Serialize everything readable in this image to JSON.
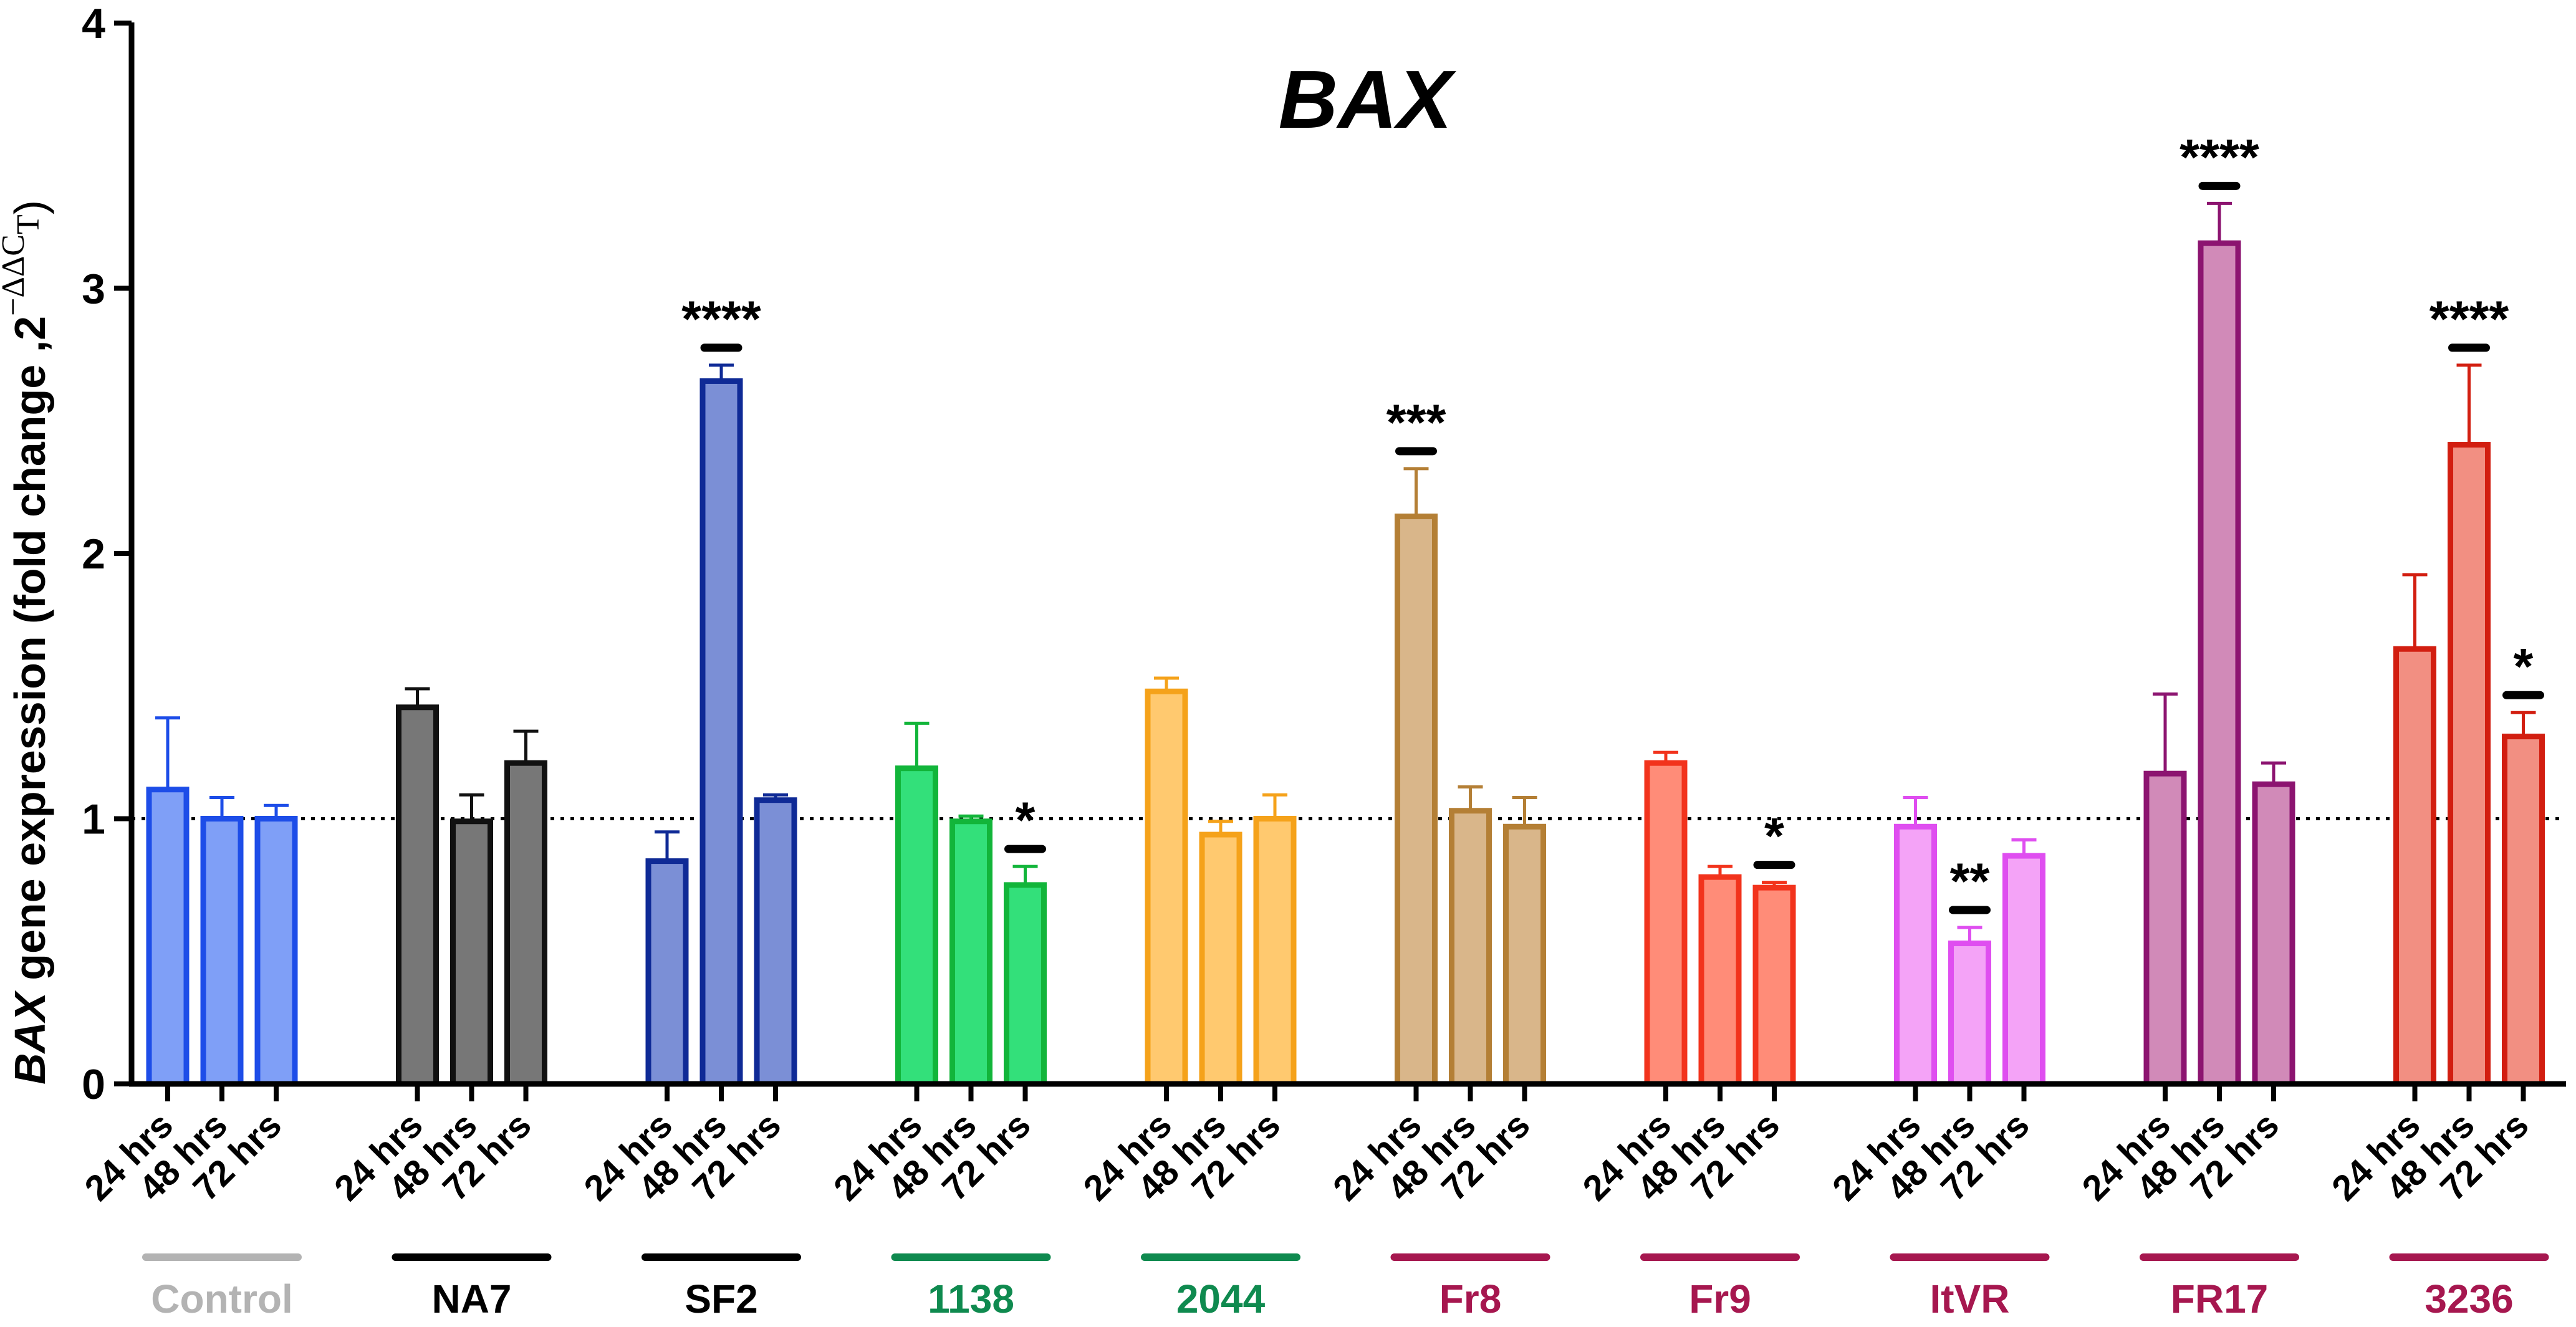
{
  "chart_data": {
    "type": "bar",
    "title": "BAX",
    "ylabel": {
      "italic": "BAX",
      "rest": " gene expression (fold change ,2",
      "sup": "−ΔΔC",
      "sub": "T",
      "close": ")"
    },
    "ylim": [
      0,
      4
    ],
    "yticks": [
      0,
      1,
      2,
      3,
      4
    ],
    "reference_line": 1,
    "groups": [
      {
        "name": "Control",
        "label_color": "#b3b3b3",
        "bar_fill": "#7f9ff7",
        "bar_stroke": "#1d4de8",
        "bars": [
          {
            "time": "24 hrs",
            "value": 1.11,
            "error": 0.27,
            "sig": ""
          },
          {
            "time": "48 hrs",
            "value": 1.0,
            "error": 0.08,
            "sig": ""
          },
          {
            "time": "72 hrs",
            "value": 1.0,
            "error": 0.05,
            "sig": ""
          }
        ]
      },
      {
        "name": "NA7",
        "label_color": "#000000",
        "bar_fill": "#777777",
        "bar_stroke": "#111111",
        "bars": [
          {
            "time": "24 hrs",
            "value": 1.42,
            "error": 0.07,
            "sig": ""
          },
          {
            "time": "48 hrs",
            "value": 0.99,
            "error": 0.1,
            "sig": ""
          },
          {
            "time": "72 hrs",
            "value": 1.21,
            "error": 0.12,
            "sig": ""
          }
        ]
      },
      {
        "name": "SF2",
        "label_color": "#000000",
        "bar_fill": "#7b8fd6",
        "bar_stroke": "#0f2a96",
        "bars": [
          {
            "time": "24 hrs",
            "value": 0.84,
            "error": 0.11,
            "sig": ""
          },
          {
            "time": "48 hrs",
            "value": 2.65,
            "error": 0.06,
            "sig": "****"
          },
          {
            "time": "72 hrs",
            "value": 1.07,
            "error": 0.02,
            "sig": ""
          }
        ]
      },
      {
        "name": "1138",
        "label_color": "#0f8a4f",
        "bar_fill": "#33e07a",
        "bar_stroke": "#12b53a",
        "bars": [
          {
            "time": "24 hrs",
            "value": 1.19,
            "error": 0.17,
            "sig": ""
          },
          {
            "time": "48 hrs",
            "value": 0.99,
            "error": 0.02,
            "sig": ""
          },
          {
            "time": "72 hrs",
            "value": 0.75,
            "error": 0.07,
            "sig": "*"
          }
        ]
      },
      {
        "name": "2044",
        "label_color": "#0f8a4f",
        "bar_fill": "#ffc96f",
        "bar_stroke": "#f5a21a",
        "bars": [
          {
            "time": "24 hrs",
            "value": 1.48,
            "error": 0.05,
            "sig": ""
          },
          {
            "time": "48 hrs",
            "value": 0.94,
            "error": 0.05,
            "sig": ""
          },
          {
            "time": "72 hrs",
            "value": 1.0,
            "error": 0.09,
            "sig": ""
          }
        ]
      },
      {
        "name": "Fr8",
        "label_color": "#a6174f",
        "bar_fill": "#d9b68a",
        "bar_stroke": "#b47f35",
        "bars": [
          {
            "time": "24 hrs",
            "value": 2.14,
            "error": 0.18,
            "sig": "***"
          },
          {
            "time": "48 hrs",
            "value": 1.03,
            "error": 0.09,
            "sig": ""
          },
          {
            "time": "72 hrs",
            "value": 0.97,
            "error": 0.11,
            "sig": ""
          }
        ]
      },
      {
        "name": "Fr9",
        "label_color": "#a6174f",
        "bar_fill": "#ff8c78",
        "bar_stroke": "#f2331c",
        "bars": [
          {
            "time": "24 hrs",
            "value": 1.21,
            "error": 0.04,
            "sig": ""
          },
          {
            "time": "48 hrs",
            "value": 0.78,
            "error": 0.04,
            "sig": ""
          },
          {
            "time": "72 hrs",
            "value": 0.74,
            "error": 0.02,
            "sig": "*"
          }
        ]
      },
      {
        "name": "ItVR",
        "label_color": "#a6174f",
        "bar_fill": "#f4a3f7",
        "bar_stroke": "#df4ef0",
        "bars": [
          {
            "time": "24 hrs",
            "value": 0.97,
            "error": 0.11,
            "sig": ""
          },
          {
            "time": "48 hrs",
            "value": 0.53,
            "error": 0.06,
            "sig": "**"
          },
          {
            "time": "72 hrs",
            "value": 0.86,
            "error": 0.06,
            "sig": ""
          }
        ]
      },
      {
        "name": "FR17",
        "label_color": "#a6174f",
        "bar_fill": "#d18ab8",
        "bar_stroke": "#8c1470",
        "bars": [
          {
            "time": "24 hrs",
            "value": 1.17,
            "error": 0.3,
            "sig": ""
          },
          {
            "time": "48 hrs",
            "value": 3.17,
            "error": 0.15,
            "sig": "****"
          },
          {
            "time": "72 hrs",
            "value": 1.13,
            "error": 0.08,
            "sig": ""
          }
        ]
      },
      {
        "name": "3236",
        "label_color": "#a6174f",
        "bar_fill": "#f28f82",
        "bar_stroke": "#d21e10",
        "bars": [
          {
            "time": "24 hrs",
            "value": 1.64,
            "error": 0.28,
            "sig": ""
          },
          {
            "time": "48 hrs",
            "value": 2.41,
            "error": 0.3,
            "sig": "****"
          },
          {
            "time": "72 hrs",
            "value": 1.31,
            "error": 0.09,
            "sig": "*"
          }
        ]
      }
    ]
  }
}
